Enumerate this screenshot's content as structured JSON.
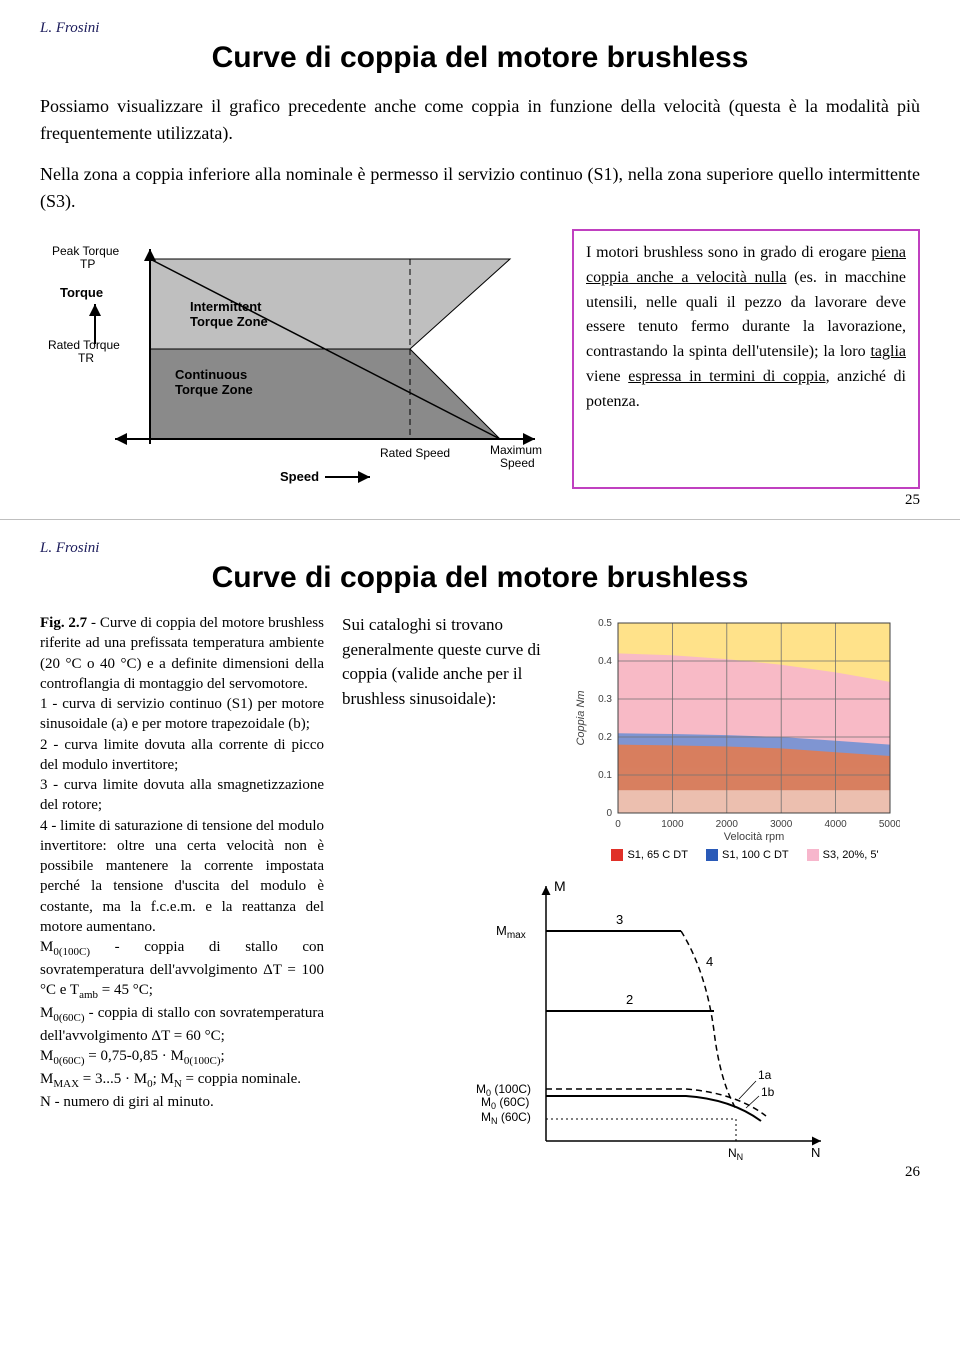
{
  "slide1": {
    "author": "L. Frosini",
    "title": "Curve di coppia del motore brushless",
    "para1": "Possiamo visualizzare il grafico precedente anche come coppia in funzione della velocità (questa è la modalità più frequentemente utilizzata).",
    "para2": "Nella zona a coppia inferiore alla nominale è permesso il servizio continuo (S1), nella zona superiore quello intermittente (S3).",
    "diagram": {
      "y_label_top": "Peak Torque",
      "y_label_top2": "TP",
      "y_axis_title": "Torque",
      "y_label_mid": "Rated Torque",
      "y_label_mid2": "TR",
      "zone_inter": "Intermittent\nTorque Zone",
      "zone_cont": "Continuous\nTorque Zone",
      "x_label_mid": "Rated Speed",
      "x_label_right": "Maximum\nSpeed",
      "x_axis_title": "Speed",
      "colors": {
        "axis": "#000000",
        "zone_inter_fill": "#bfbfbf",
        "zone_cont_fill": "#8a8a8a"
      }
    },
    "callout_html": "I motori brushless sono in grado di erogare <u>piena coppia anche a velocità nulla</u> (es. in macchine utensili, nelle quali il pezzo da lavorare deve essere tenuto fermo durante la lavorazione, contrastando la spinta dell'utensile); la loro <u>taglia</u> viene <u>espressa in termini di coppia</u>, anziché di potenza.",
    "pagenum": "25"
  },
  "slide2": {
    "author": "L. Frosini",
    "title": "Curve di coppia del motore brushless",
    "figcap_html": "<b>Fig. 2.7</b> - Curve di coppia del motore brushless riferite ad una prefissata temperatura ambiente (20 °C o 40 °C) e a definite dimensioni della controflangia di montaggio del servomotore.<br>1 - curva di servizio continuo (S1) per motore sinusoidale (a) e per motore trapezoidale (b);<br>2 - curva limite dovuta alla corrente di picco del modulo invertitore;<br>3 - curva limite dovuta alla smagnetizzazione del rotore;<br>4 - limite di saturazione di tensione del modulo invertitore: oltre una certa velocità non è possibile mantenere la corrente impostata perché la tensione d'uscita del modulo è costante, ma la f.c.e.m. e la reattanza del motore aumentano.<br>M<span class=\"sub\">0(100C)</span> - coppia di stallo con sovratemperatura dell'avvolgimento ΔT = 100 °C e T<span class=\"sub\">amb</span> = 45 °C;<br>M<span class=\"sub\">0(60C)</span> - coppia di stallo con sovratemperatura dell'avvolgimento ΔT = 60 °C;<br>M<span class=\"sub\">0(60C)</span> = 0,75-0,85 · M<span class=\"sub\">0(100C)</span>;<br>M<span class=\"sub\">MAX</span> = 3...5 · M<span class=\"sub\">0</span>; M<span class=\"sub\">N</span> = coppia nominale.<br>N - numero di giri al minuto.",
    "mid_text": "Sui cataloghi si trovano generalmente queste curve di coppia (valide anche per il brushless sinusoidale):",
    "chart": {
      "xlabel": "Velocità rpm",
      "ylabel": "Coppia Nm",
      "xlim": [
        0,
        5000
      ],
      "ylim": [
        0,
        0.5
      ],
      "xticks": [
        0,
        1000,
        2000,
        3000,
        4000,
        5000
      ],
      "yticks": [
        0,
        0.1,
        0.2,
        0.3,
        0.4,
        0.5
      ],
      "bg_top": "#ffe28a",
      "bg_band_s3": "#f7b6cc",
      "bg_band_s1_100": "#6a8ed4",
      "bg_band_s1_65": "#e87a4a",
      "grid_color": "#707070",
      "s3_data": [
        [
          0,
          0.42
        ],
        [
          1000,
          0.415
        ],
        [
          2000,
          0.405
        ],
        [
          3000,
          0.39
        ],
        [
          4000,
          0.37
        ],
        [
          5000,
          0.345
        ]
      ],
      "s1_100_data": [
        [
          0,
          0.21
        ],
        [
          1000,
          0.208
        ],
        [
          2000,
          0.205
        ],
        [
          3000,
          0.2
        ],
        [
          4000,
          0.19
        ],
        [
          5000,
          0.18
        ]
      ],
      "s1_65_data": [
        [
          0,
          0.18
        ],
        [
          1000,
          0.178
        ],
        [
          2000,
          0.175
        ],
        [
          3000,
          0.17
        ],
        [
          4000,
          0.16
        ],
        [
          5000,
          0.15
        ]
      ],
      "legend": [
        {
          "label": "S1, 65 C DT",
          "color": "#e03028"
        },
        {
          "label": "S1, 100 C DT",
          "color": "#2a5ab8"
        },
        {
          "label": "S3, 20%, 5'",
          "color": "#f7b6cc"
        }
      ]
    },
    "curve_diagram": {
      "y_markers": [
        "M",
        "Mmax",
        "",
        "M0 (100C)",
        "M0 (60C)",
        "MN (60C)"
      ],
      "x_markers": [
        "NN",
        "N"
      ],
      "curve_labels": [
        "3",
        "4",
        "2",
        "1a",
        "1b"
      ]
    },
    "pagenum": "26"
  }
}
